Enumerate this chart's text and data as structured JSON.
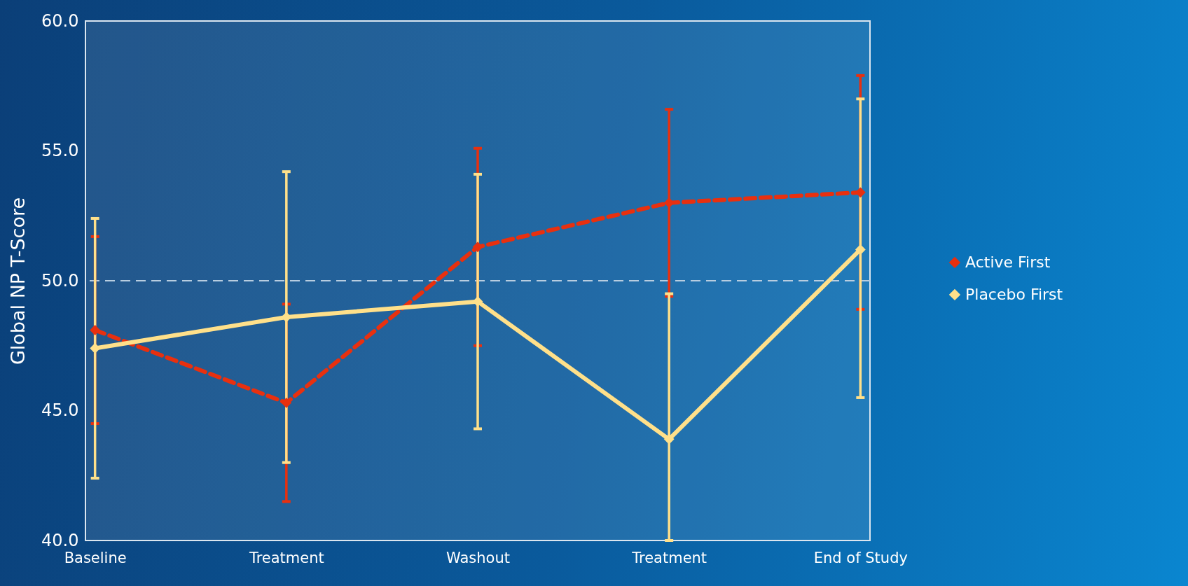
{
  "chart_data": {
    "type": "line",
    "ylabel": "Global NP T-Score",
    "categories": [
      "Baseline",
      "Treatment",
      "Washout",
      "Treatment",
      "End of Study"
    ],
    "series": [
      {
        "name": "Active First",
        "color": "#e8300f",
        "line_style": "dashed",
        "values": [
          48.1,
          45.3,
          51.3,
          53.0,
          53.4
        ],
        "errors": [
          [
            44.5,
            51.7
          ],
          [
            41.5,
            49.1
          ],
          [
            47.5,
            55.1
          ],
          [
            49.4,
            56.6
          ],
          [
            48.9,
            57.9
          ]
        ]
      },
      {
        "name": "Placebo First",
        "color": "#ffe08a",
        "line_style": "solid",
        "values": [
          47.4,
          48.6,
          49.2,
          43.9,
          51.2
        ],
        "errors": [
          [
            42.4,
            52.4
          ],
          [
            43.0,
            54.2
          ],
          [
            44.3,
            54.1
          ],
          [
            40.0,
            49.5
          ],
          [
            45.5,
            57.0
          ]
        ]
      }
    ],
    "ylim": [
      40,
      60
    ],
    "yticks": [
      {
        "value": 40,
        "label": "40.0"
      },
      {
        "value": 45,
        "label": "45.0"
      },
      {
        "value": 50,
        "label": "50.0"
      },
      {
        "value": 55,
        "label": "55.0"
      },
      {
        "value": 60,
        "label": "60.0"
      }
    ],
    "ref_lines": [
      {
        "axis": "y",
        "value": 50,
        "color": "#b8cde0",
        "line_style": "dashed"
      }
    ],
    "marker": "diamond",
    "legend": "right",
    "grid": false
  }
}
